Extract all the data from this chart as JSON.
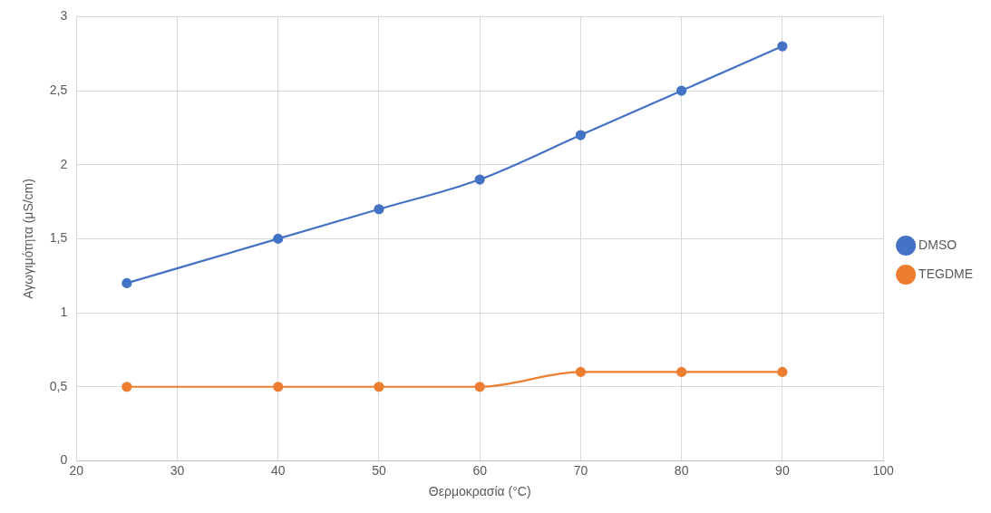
{
  "chart_data": {
    "type": "line",
    "xlabel": "Θερμοκρασία (°C)",
    "ylabel": "Αγωγιμότητα (μS/cm)",
    "x": [
      25,
      40,
      50,
      60,
      70,
      80,
      90
    ],
    "series": [
      {
        "name": "DMSO",
        "color": "#4472c4",
        "values": [
          1.2,
          1.5,
          1.7,
          1.9,
          2.2,
          2.5,
          2.8
        ]
      },
      {
        "name": "TEGDME",
        "color": "#ed7d31",
        "values": [
          0.5,
          0.5,
          0.5,
          0.5,
          0.6,
          0.6,
          0.6
        ]
      }
    ],
    "xlim": [
      20,
      100
    ],
    "xticks": [
      20,
      30,
      40,
      50,
      60,
      70,
      80,
      90,
      100
    ],
    "ylim": [
      0,
      3
    ],
    "yticks": [
      {
        "value": 0,
        "label": "0"
      },
      {
        "value": 0.5,
        "label": "0,5"
      },
      {
        "value": 1,
        "label": "1"
      },
      {
        "value": 1.5,
        "label": "1,5"
      },
      {
        "value": 2,
        "label": "2"
      },
      {
        "value": 2.5,
        "label": "2,5"
      },
      {
        "value": 3,
        "label": "3"
      }
    ],
    "grid": true,
    "legend": "right",
    "marker": "circle",
    "line_style": "solid"
  }
}
